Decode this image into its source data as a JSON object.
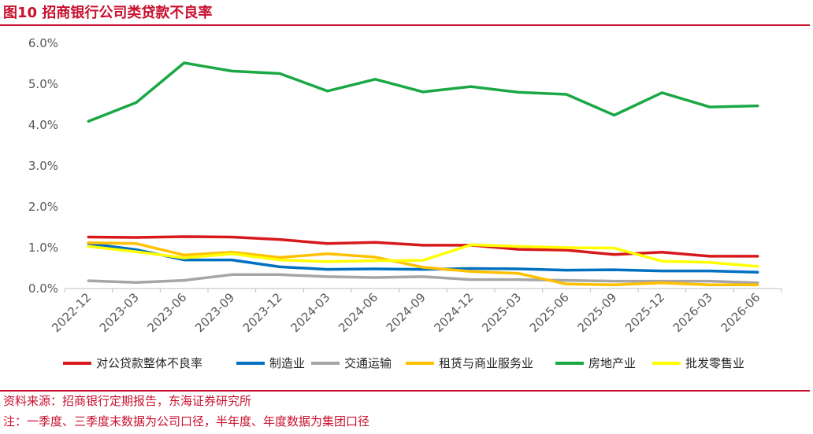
{
  "figure": {
    "title": "图10  招商银行公司类贷款不良率",
    "source": "资料来源：招商银行定期报告，东海证券研究所",
    "note": "注：一季度、三季度末数据为公司口径，半年度、年度数据为集团口径",
    "accent_color": "#c8102e"
  },
  "chart_data": {
    "type": "line",
    "title": "",
    "xlabel": "",
    "ylabel": "",
    "ylim": [
      0,
      6
    ],
    "y_ticks": [
      "0.0%",
      "1.0%",
      "2.0%",
      "3.0%",
      "4.0%",
      "5.0%",
      "6.0%"
    ],
    "grid": false,
    "legend_position": "bottom",
    "categories": [
      "2022-12",
      "2023-03",
      "2023-06",
      "2023-09",
      "2023-12",
      "2024-03",
      "2024-06",
      "2024-09",
      "2024-12",
      "2025-03",
      "2025-06",
      "2025-09",
      "2025-12",
      "2026-03",
      "2026-06"
    ],
    "series": [
      {
        "name": "对公贷款整体不良率",
        "color": "#d7191c",
        "values": [
          1.26,
          1.25,
          1.27,
          1.26,
          1.2,
          1.1,
          1.13,
          1.06,
          1.06,
          0.96,
          0.94,
          0.83,
          0.89,
          0.79,
          0.79
        ]
      },
      {
        "name": "制造业",
        "color": "#0070c0",
        "values": [
          1.1,
          0.95,
          0.7,
          0.7,
          0.53,
          0.47,
          0.48,
          0.47,
          0.49,
          0.48,
          0.45,
          0.46,
          0.43,
          0.43,
          0.4
        ]
      },
      {
        "name": "交通运输",
        "color": "#a6a6a6",
        "values": [
          0.19,
          0.15,
          0.2,
          0.34,
          0.34,
          0.29,
          0.27,
          0.29,
          0.22,
          0.22,
          0.2,
          0.18,
          0.18,
          0.18,
          0.14
        ]
      },
      {
        "name": "租赁与商业服务业",
        "color": "#ffc000",
        "values": [
          1.12,
          1.1,
          0.82,
          0.89,
          0.76,
          0.85,
          0.77,
          0.52,
          0.42,
          0.37,
          0.11,
          0.09,
          0.14,
          0.09,
          0.09
        ]
      },
      {
        "name": "房地产业",
        "color": "#1aa845",
        "values": [
          4.09,
          4.55,
          5.52,
          5.32,
          5.26,
          4.83,
          5.12,
          4.81,
          4.94,
          4.8,
          4.75,
          4.24,
          4.79,
          4.44,
          4.47
        ]
      },
      {
        "name": "批发零售业",
        "color": "#ffff00",
        "values": [
          1.03,
          0.9,
          0.75,
          0.85,
          0.7,
          0.66,
          0.68,
          0.69,
          1.07,
          1.03,
          1.0,
          0.99,
          0.67,
          0.64,
          0.54
        ]
      }
    ]
  }
}
